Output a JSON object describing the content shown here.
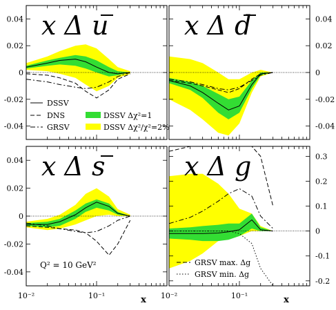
{
  "colors": {
    "band_wide": "#ffff00",
    "band_narrow": "#33dd33",
    "line": "#000000"
  },
  "x_axis_label": "x",
  "x_tick_labels": [
    "10⁻²",
    "10⁻¹"
  ],
  "annotation": "Q² = 10 GeV²",
  "legend_main": [
    {
      "label": "DSSV",
      "style": "solid"
    },
    {
      "label": "DNS",
      "style": "dashed"
    },
    {
      "label": "GRSV",
      "style": "dashdot"
    },
    {
      "label": "DSSV Δχ²=1",
      "style": "green-box"
    },
    {
      "label": "DSSV Δχ²/χ²=2%",
      "style": "yellow-box"
    }
  ],
  "legend_g": [
    {
      "label": "GRSV max. Δg",
      "style": "dashed"
    },
    {
      "label": "GRSV min. Δg",
      "style": "dotted"
    }
  ],
  "chart_data": [
    {
      "type": "line",
      "panel": "top-left",
      "title_parts": {
        "x": "x",
        "delta": "Δ",
        "q": "u"
      },
      "title_bar": true,
      "x": [
        0.01,
        0.02,
        0.03,
        0.05,
        0.07,
        0.1,
        0.15,
        0.2,
        0.3
      ],
      "xscale": "log",
      "xlim": [
        0.01,
        1.0
      ],
      "ylim": [
        -0.05,
        0.05
      ],
      "yticks": [
        -0.04,
        -0.02,
        0,
        0.02,
        0.04
      ],
      "ytick_labels": [
        "-0.04",
        "-0.02",
        "0",
        "0.02",
        "0.04"
      ],
      "yaxis_side": "left",
      "bands": {
        "wide_upper": [
          0.007,
          0.012,
          0.016,
          0.02,
          0.021,
          0.018,
          0.01,
          0.004,
          0.001
        ],
        "wide_lower": [
          0.002,
          0.001,
          -0.001,
          -0.004,
          -0.009,
          -0.014,
          -0.01,
          -0.004,
          -0.001
        ],
        "narrow_upper": [
          0.005,
          0.009,
          0.011,
          0.013,
          0.012,
          0.009,
          0.004,
          0.001,
          0.0
        ],
        "narrow_lower": [
          0.003,
          0.005,
          0.006,
          0.005,
          0.003,
          0.0,
          -0.003,
          -0.002,
          0.0
        ]
      },
      "series": [
        {
          "name": "DSSV",
          "style": "solid",
          "values": [
            0.004,
            0.007,
            0.009,
            0.01,
            0.008,
            0.004,
            0.0,
            -0.001,
            0.0
          ]
        },
        {
          "name": "DNS",
          "style": "dashed",
          "values": [
            -0.001,
            -0.002,
            -0.004,
            -0.008,
            -0.014,
            -0.019,
            -0.013,
            -0.005,
            -0.001
          ]
        },
        {
          "name": "GRSV",
          "style": "dashdot",
          "values": [
            -0.005,
            -0.007,
            -0.009,
            -0.011,
            -0.012,
            -0.011,
            -0.007,
            -0.003,
            0.0
          ]
        }
      ]
    },
    {
      "type": "line",
      "panel": "top-right",
      "title_parts": {
        "x": "x",
        "delta": "Δ",
        "q": "d"
      },
      "title_bar": true,
      "x": [
        0.01,
        0.02,
        0.03,
        0.05,
        0.07,
        0.1,
        0.15,
        0.2,
        0.3
      ],
      "xscale": "log",
      "xlim": [
        0.01,
        1.0
      ],
      "ylim": [
        -0.05,
        0.05
      ],
      "yticks": [
        -0.04,
        -0.02,
        0,
        0.02,
        0.04
      ],
      "ytick_labels": [
        "-0.04",
        "-0.02",
        "0",
        "0.02",
        "0.04"
      ],
      "yaxis_side": "right",
      "bands": {
        "wide_upper": [
          0.012,
          0.01,
          0.007,
          0.0,
          -0.005,
          -0.005,
          0.0,
          0.002,
          0.0
        ],
        "wide_lower": [
          -0.02,
          -0.028,
          -0.035,
          -0.045,
          -0.047,
          -0.038,
          -0.015,
          -0.003,
          0.0
        ],
        "narrow_upper": [
          -0.004,
          -0.007,
          -0.01,
          -0.016,
          -0.02,
          -0.018,
          -0.006,
          0.0,
          0.0
        ],
        "narrow_lower": [
          -0.008,
          -0.013,
          -0.019,
          -0.03,
          -0.035,
          -0.03,
          -0.012,
          -0.002,
          0.0
        ]
      },
      "series": [
        {
          "name": "DSSV",
          "style": "solid",
          "values": [
            -0.006,
            -0.01,
            -0.015,
            -0.023,
            -0.028,
            -0.025,
            -0.009,
            -0.001,
            0.0
          ]
        },
        {
          "name": "DNS",
          "style": "dashed",
          "values": [
            -0.006,
            -0.008,
            -0.01,
            -0.013,
            -0.015,
            -0.012,
            -0.005,
            -0.001,
            0.0
          ]
        },
        {
          "name": "GRSV",
          "style": "dashdot",
          "values": [
            -0.005,
            -0.007,
            -0.009,
            -0.012,
            -0.013,
            -0.011,
            -0.006,
            -0.002,
            0.0
          ]
        }
      ]
    },
    {
      "type": "line",
      "panel": "bottom-left",
      "title_parts": {
        "x": "x",
        "delta": "Δ",
        "q": "s"
      },
      "title_bar": true,
      "x": [
        0.01,
        0.02,
        0.03,
        0.05,
        0.07,
        0.1,
        0.15,
        0.2,
        0.3
      ],
      "xscale": "log",
      "xlim": [
        0.01,
        1.0
      ],
      "ylim": [
        -0.05,
        0.05
      ],
      "yticks": [
        -0.04,
        -0.02,
        0,
        0.02,
        0.04
      ],
      "ytick_labels": [
        "-0.04",
        "-0.02",
        "0",
        "0.02",
        "0.04"
      ],
      "yaxis_side": "left",
      "bands": {
        "wide_upper": [
          -0.004,
          -0.002,
          0.001,
          0.008,
          0.016,
          0.02,
          0.014,
          0.005,
          0.001
        ],
        "wide_lower": [
          -0.008,
          -0.01,
          -0.009,
          -0.006,
          -0.003,
          0.0,
          0.001,
          0.0,
          0.0
        ],
        "narrow_upper": [
          -0.005,
          -0.004,
          -0.002,
          0.004,
          0.009,
          0.012,
          0.009,
          0.003,
          0.0
        ],
        "narrow_lower": [
          -0.007,
          -0.008,
          -0.007,
          -0.002,
          0.003,
          0.006,
          0.004,
          0.001,
          0.0
        ]
      },
      "series": [
        {
          "name": "DSSV",
          "style": "solid",
          "values": [
            -0.006,
            -0.006,
            -0.004,
            0.001,
            0.006,
            0.01,
            0.007,
            0.002,
            0.0
          ]
        },
        {
          "name": "DNS",
          "style": "dashed",
          "values": [
            -0.007,
            -0.008,
            -0.009,
            -0.01,
            -0.012,
            -0.018,
            -0.028,
            -0.02,
            -0.003
          ]
        },
        {
          "name": "GRSV",
          "style": "dashdot",
          "values": [
            -0.005,
            -0.007,
            -0.009,
            -0.011,
            -0.012,
            -0.011,
            -0.007,
            -0.003,
            0.0
          ]
        }
      ]
    },
    {
      "type": "line",
      "panel": "bottom-right",
      "title_parts": {
        "x": "x",
        "delta": "Δ",
        "q": "g"
      },
      "title_bar": false,
      "x": [
        0.01,
        0.02,
        0.03,
        0.05,
        0.07,
        0.1,
        0.15,
        0.2,
        0.3
      ],
      "xscale": "log",
      "xlim": [
        0.01,
        1.0
      ],
      "ylim": [
        -0.22,
        0.34
      ],
      "yticks": [
        -0.2,
        -0.1,
        0,
        0.1,
        0.2,
        0.3
      ],
      "ytick_labels": [
        "-0.2",
        "-0.1",
        "0",
        "0.1",
        "0.2",
        "0.3"
      ],
      "yaxis_side": "right",
      "bands": {
        "wide_upper": [
          0.22,
          0.23,
          0.23,
          0.19,
          0.15,
          0.09,
          0.07,
          0.02,
          0.0
        ],
        "wide_lower": [
          -0.15,
          -0.12,
          -0.09,
          -0.04,
          -0.03,
          -0.02,
          0.0,
          0.0,
          0.0
        ],
        "narrow_upper": [
          0.01,
          0.015,
          0.02,
          0.025,
          0.03,
          0.03,
          0.07,
          0.015,
          0.0
        ],
        "narrow_lower": [
          -0.03,
          -0.035,
          -0.04,
          -0.04,
          -0.035,
          -0.02,
          0.01,
          0.0,
          0.0
        ]
      },
      "series": [
        {
          "name": "DSSV",
          "style": "solid",
          "values": [
            -0.01,
            -0.01,
            -0.01,
            -0.008,
            -0.003,
            0.005,
            0.045,
            0.005,
            0.0
          ]
        },
        {
          "name": "GRSV",
          "style": "dashdot",
          "values": [
            0.03,
            0.055,
            0.08,
            0.12,
            0.15,
            0.17,
            0.14,
            0.06,
            0.01
          ]
        },
        {
          "name": "GRSV max. Δg",
          "style": "dashed",
          "values": [
            0.32,
            0.34,
            0.34,
            0.34,
            0.34,
            0.34,
            0.34,
            0.3,
            0.1
          ]
        },
        {
          "name": "GRSV min. Δg",
          "style": "dotted",
          "values": [
            0.0,
            0.0,
            0.0,
            0.0,
            0.0,
            -0.01,
            -0.05,
            -0.15,
            -0.22
          ]
        }
      ]
    }
  ]
}
